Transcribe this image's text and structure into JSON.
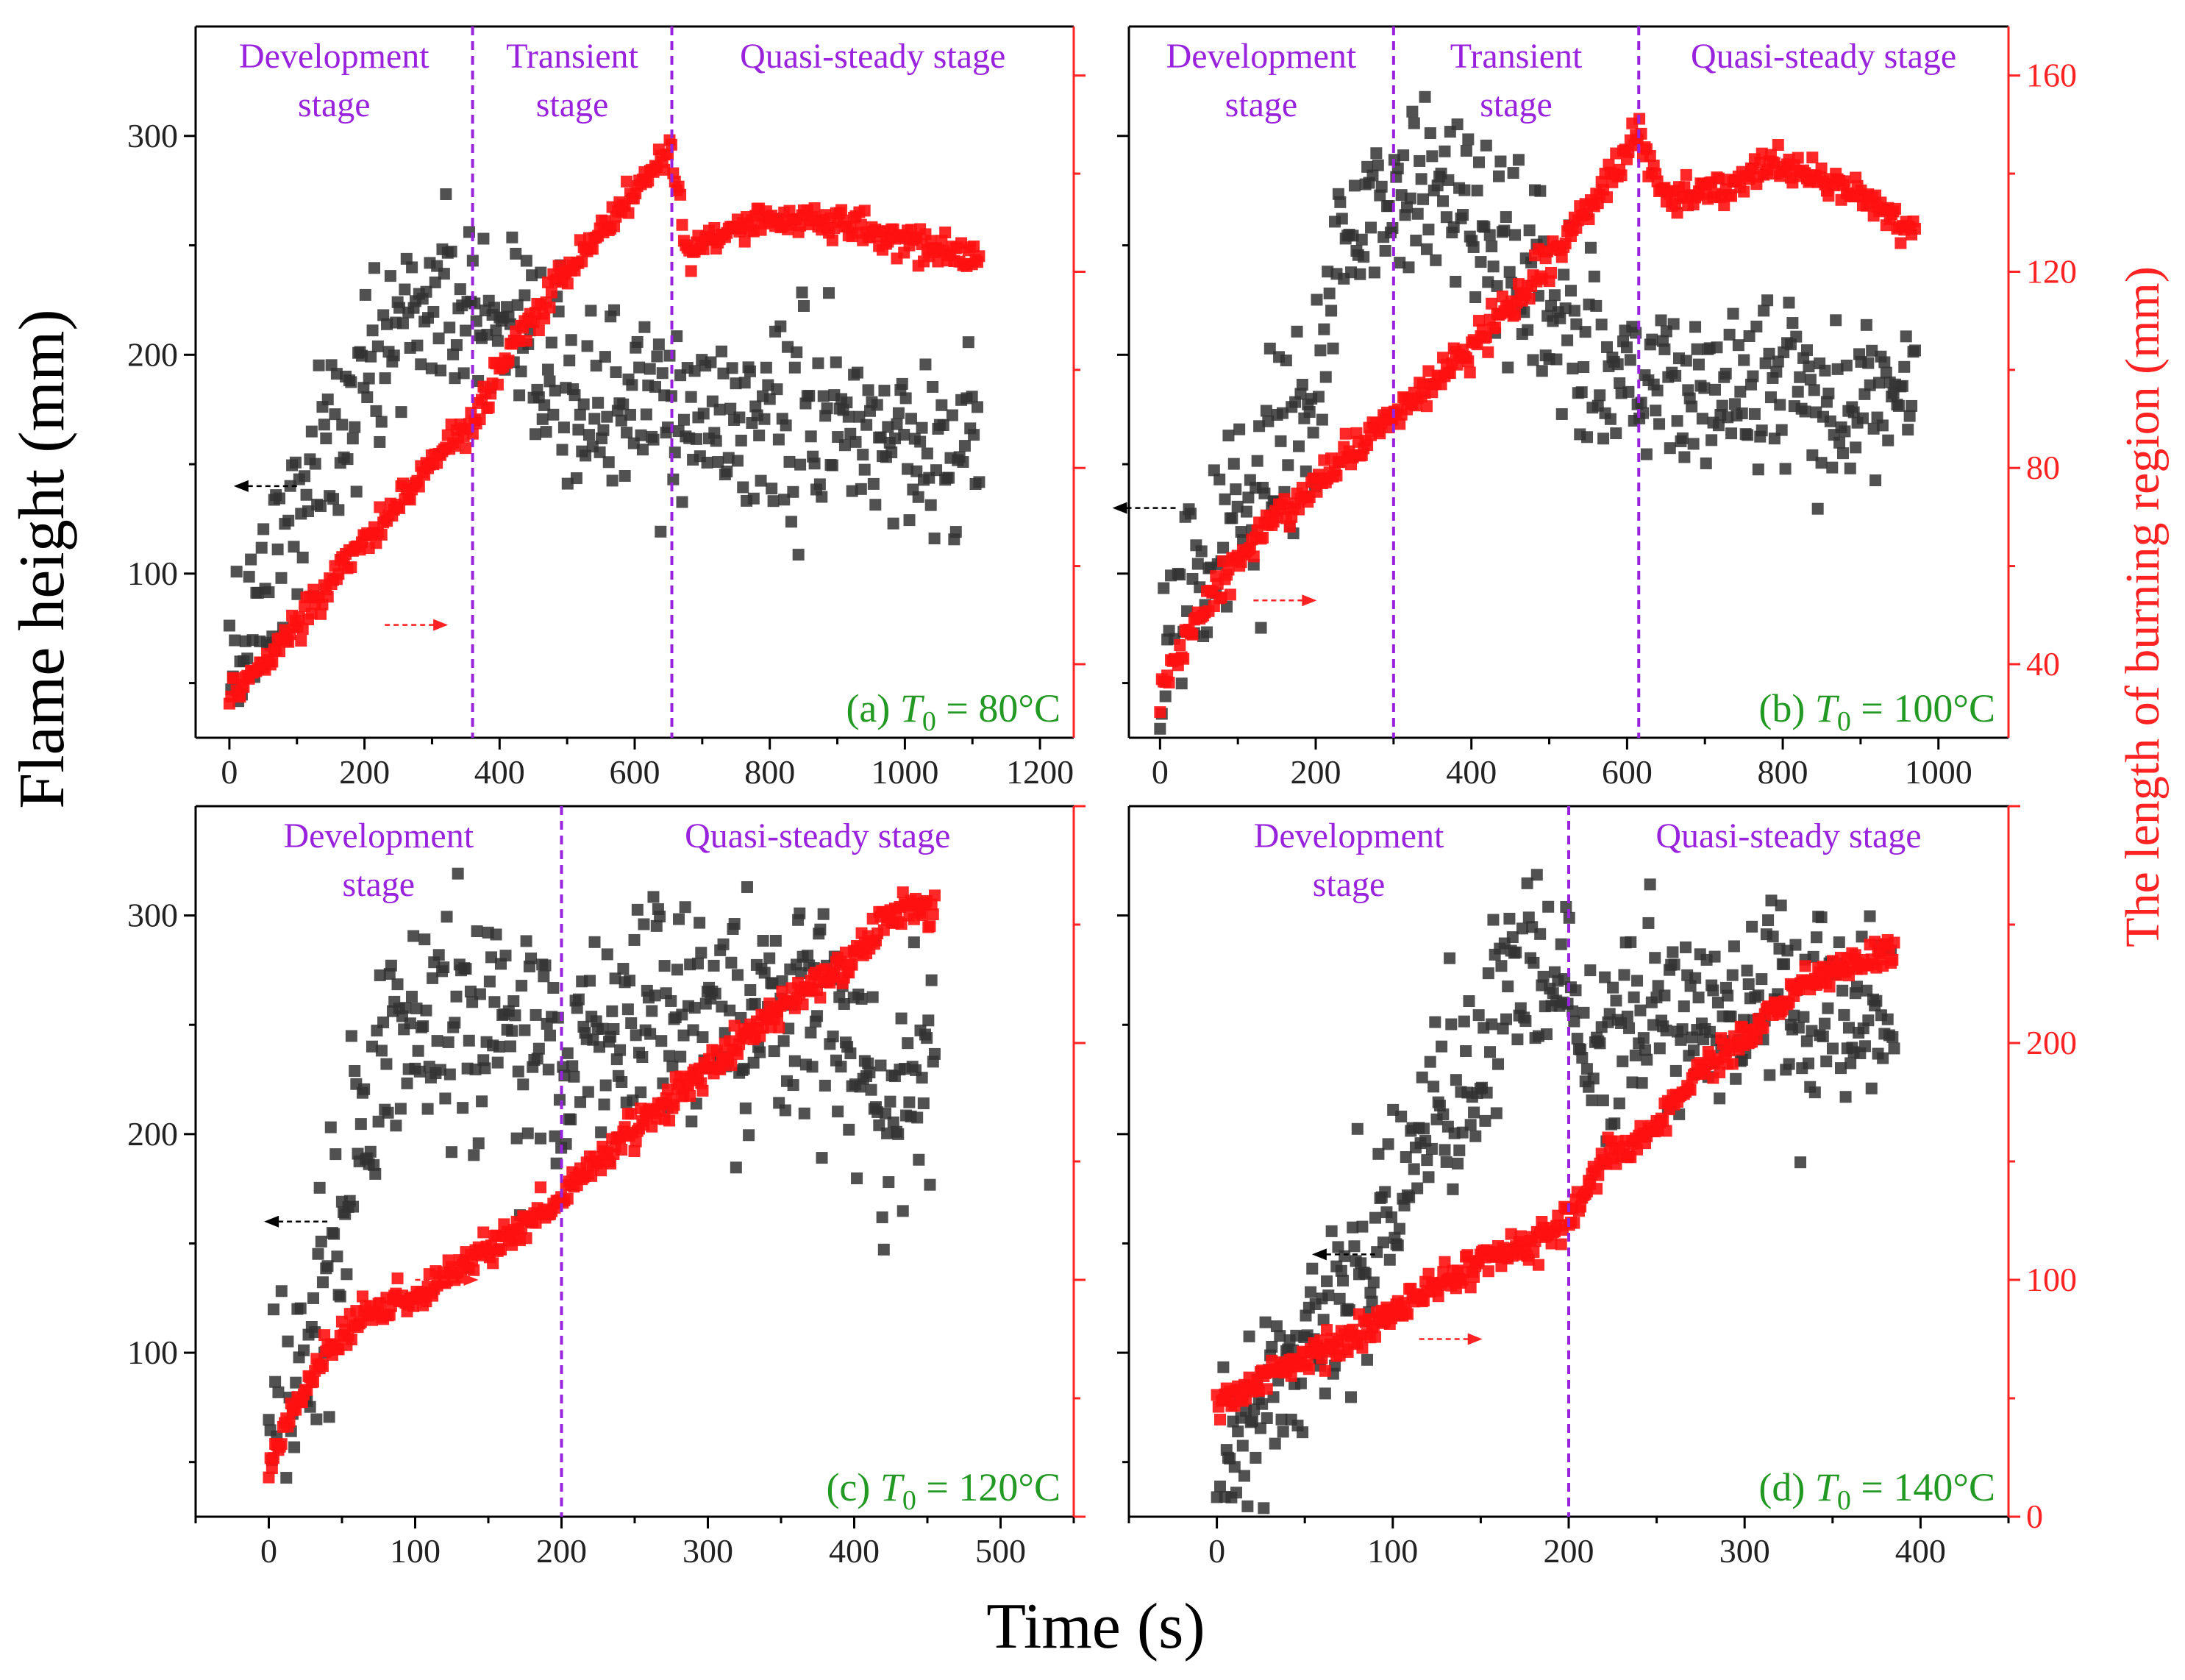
{
  "figure": {
    "xlabel": "Time (s)",
    "ylabel_left": "Flame height (mm)",
    "ylabel_right": "The length of burning region (mm)",
    "colors": {
      "flame": "#333333",
      "burning": "#ff1111",
      "stage_line": "#9922dd",
      "condition": "#229922",
      "right_axis": "#ff2222"
    }
  },
  "chart_data": [
    {
      "id": "a",
      "type": "scatter",
      "condition": {
        "prefix": "(a) ",
        "var": "T",
        "sub": "0",
        "rest": " = 80°C"
      },
      "xlim": [
        -50,
        1250
      ],
      "xticks": [
        0,
        200,
        400,
        600,
        800,
        1000,
        1200
      ],
      "ylim_left": [
        25,
        350
      ],
      "yticks_left": [
        100,
        200,
        300
      ],
      "ylim_right": [
        25,
        170
      ],
      "yticks_right": [
        40,
        80,
        120,
        160
      ],
      "right_tick_labels": false,
      "stage_lines": [
        360,
        655
      ],
      "stages": [
        {
          "lines": [
            "Development",
            "stage"
          ]
        },
        {
          "lines": [
            "Transient",
            "stage"
          ]
        },
        {
          "lines": [
            "Quasi-steady stage"
          ]
        }
      ],
      "series": [
        {
          "name": "Flame height",
          "axis": "left",
          "points": [
            [
              0,
              55
            ],
            [
              50,
              95
            ],
            [
              100,
              130
            ],
            [
              150,
              160
            ],
            [
              200,
              185
            ],
            [
              250,
              215
            ],
            [
              300,
              225
            ],
            [
              360,
              220
            ],
            [
              400,
              200
            ],
            [
              500,
              180
            ],
            [
              600,
              175
            ],
            [
              655,
              172
            ],
            [
              700,
              170
            ],
            [
              800,
              170
            ],
            [
              900,
              168
            ],
            [
              1000,
              160
            ],
            [
              1110,
              158
            ]
          ]
        },
        {
          "name": "The length of burning region",
          "axis": "right",
          "points": [
            [
              0,
              34
            ],
            [
              50,
              40
            ],
            [
              100,
              48
            ],
            [
              150,
              57
            ],
            [
              200,
              65
            ],
            [
              250,
              73
            ],
            [
              300,
              81
            ],
            [
              360,
              89
            ],
            [
              400,
              100
            ],
            [
              450,
              111
            ],
            [
              500,
              120
            ],
            [
              550,
              128
            ],
            [
              600,
              137
            ],
            [
              655,
              144
            ],
            [
              680,
              123
            ],
            [
              700,
              126
            ],
            [
              800,
              131
            ],
            [
              900,
              130
            ],
            [
              1000,
              126
            ],
            [
              1110,
              123
            ]
          ]
        }
      ],
      "arrows": {
        "left": {
          "t": 100,
          "value": 140
        },
        "right": {
          "t": 230,
          "value": 48
        }
      }
    },
    {
      "id": "b",
      "type": "scatter",
      "condition": {
        "prefix": "(b) ",
        "var": "T",
        "sub": "0",
        "rest": " = 100°C"
      },
      "xlim": [
        -40,
        1090
      ],
      "xticks": [
        0,
        200,
        400,
        600,
        800,
        1000
      ],
      "ylim_left": [
        25,
        350
      ],
      "yticks_left": [
        100,
        200,
        300
      ],
      "ylim_right": [
        25,
        170
      ],
      "yticks_right": [
        40,
        80,
        120,
        160
      ],
      "right_tick_labels": true,
      "stage_lines": [
        300,
        615
      ],
      "stages": [
        {
          "lines": [
            "Development",
            "stage"
          ]
        },
        {
          "lines": [
            "Transient",
            "stage"
          ]
        },
        {
          "lines": [
            "Quasi-steady stage"
          ]
        }
      ],
      "series": [
        {
          "name": "Flame height",
          "axis": "left",
          "points": [
            [
              0,
              50
            ],
            [
              50,
              95
            ],
            [
              100,
              125
            ],
            [
              150,
              150
            ],
            [
              200,
              185
            ],
            [
              230,
              240
            ],
            [
              270,
              270
            ],
            [
              300,
              280
            ],
            [
              350,
              275
            ],
            [
              400,
              265
            ],
            [
              450,
              250
            ],
            [
              500,
              215
            ],
            [
              550,
              195
            ],
            [
              615,
              190
            ],
            [
              700,
              185
            ],
            [
              800,
              190
            ],
            [
              900,
              180
            ],
            [
              970,
              175
            ]
          ]
        },
        {
          "name": "The length of burning region",
          "axis": "right",
          "points": [
            [
              0,
              35
            ],
            [
              50,
              50
            ],
            [
              100,
              62
            ],
            [
              150,
              70
            ],
            [
              200,
              77
            ],
            [
              250,
              84
            ],
            [
              300,
              91
            ],
            [
              350,
              97
            ],
            [
              400,
              105
            ],
            [
              450,
              113
            ],
            [
              500,
              122
            ],
            [
              550,
              133
            ],
            [
              600,
              145
            ],
            [
              615,
              148
            ],
            [
              650,
              135
            ],
            [
              700,
              136
            ],
            [
              800,
              142
            ],
            [
              900,
              136
            ],
            [
              970,
              127
            ]
          ]
        }
      ],
      "arrows": {
        "left": {
          "t": 20,
          "value": 130
        },
        "right": {
          "t": 120,
          "value": 53
        }
      }
    },
    {
      "id": "c",
      "type": "scatter",
      "condition": {
        "prefix": "(c) ",
        "var": "T",
        "sub": "0",
        "rest": " = 120°C"
      },
      "xlim": [
        -50,
        550
      ],
      "xticks": [
        0,
        100,
        200,
        300,
        400,
        500
      ],
      "ylim_left": [
        25,
        350
      ],
      "yticks_left": [
        100,
        200,
        300
      ],
      "ylim_right": [
        0,
        300
      ],
      "yticks_right": [
        0,
        100,
        200
      ],
      "right_tick_labels": false,
      "stage_lines": [
        200
      ],
      "stages": [
        {
          "lines": [
            "Development",
            "stage"
          ]
        },
        {
          "lines": [
            "Quasi-steady stage"
          ]
        }
      ],
      "series": [
        {
          "name": "Flame height",
          "axis": "left",
          "points": [
            [
              0,
              45
            ],
            [
              20,
              90
            ],
            [
              40,
              140
            ],
            [
              60,
              190
            ],
            [
              80,
              235
            ],
            [
              100,
              255
            ],
            [
              150,
              250
            ],
            [
              200,
              245
            ],
            [
              250,
              255
            ],
            [
              300,
              255
            ],
            [
              350,
              250
            ],
            [
              400,
              245
            ],
            [
              420,
              200
            ],
            [
              455,
              230
            ]
          ]
        },
        {
          "name": "The length of burning region",
          "axis": "right",
          "points": [
            [
              0,
              20
            ],
            [
              20,
              50
            ],
            [
              40,
              70
            ],
            [
              60,
              85
            ],
            [
              100,
              92
            ],
            [
              150,
              112
            ],
            [
              200,
              135
            ],
            [
              250,
              165
            ],
            [
              300,
              190
            ],
            [
              350,
              215
            ],
            [
              400,
              235
            ],
            [
              425,
              255
            ],
            [
              455,
              257
            ]
          ]
        }
      ],
      "arrows": {
        "left": {
          "t": 40,
          "value": 160
        },
        "right": {
          "t": 100,
          "value": 100
        }
      }
    },
    {
      "id": "d",
      "type": "scatter",
      "condition": {
        "prefix": "(d) ",
        "var": "T",
        "sub": "0",
        "rest": " = 140°C"
      },
      "xlim": [
        -50,
        450
      ],
      "xticks": [
        0,
        100,
        200,
        300,
        400
      ],
      "ylim_left": [
        25,
        350
      ],
      "yticks_left": [
        100,
        200,
        300
      ],
      "ylim_right": [
        0,
        300
      ],
      "yticks_right": [
        0,
        100,
        200
      ],
      "right_tick_labels": true,
      "stage_lines": [
        200
      ],
      "stages": [
        {
          "lines": [
            "Development",
            "stage"
          ]
        },
        {
          "lines": [
            "Quasi-steady stage"
          ]
        }
      ],
      "series": [
        {
          "name": "Flame height",
          "axis": "left",
          "points": [
            [
              0,
              50
            ],
            [
              30,
              75
            ],
            [
              60,
              110
            ],
            [
              90,
              155
            ],
            [
              120,
              200
            ],
            [
              150,
              235
            ],
            [
              160,
              265
            ],
            [
              200,
              270
            ],
            [
              210,
              230
            ],
            [
              250,
              260
            ],
            [
              300,
              260
            ],
            [
              350,
              255
            ],
            [
              385,
              262
            ]
          ]
        },
        {
          "name": "The length of burning region",
          "axis": "right",
          "points": [
            [
              0,
              45
            ],
            [
              30,
              60
            ],
            [
              60,
              70
            ],
            [
              90,
              80
            ],
            [
              120,
              95
            ],
            [
              150,
              108
            ],
            [
              180,
              115
            ],
            [
              200,
              125
            ],
            [
              220,
              150
            ],
            [
              250,
              165
            ],
            [
              270,
              185
            ],
            [
              300,
              200
            ],
            [
              330,
              225
            ],
            [
              385,
              240
            ]
          ]
        }
      ],
      "arrows": {
        "left": {
          "t": 90,
          "value": 145
        },
        "right": {
          "t": 115,
          "value": 75
        }
      }
    }
  ]
}
